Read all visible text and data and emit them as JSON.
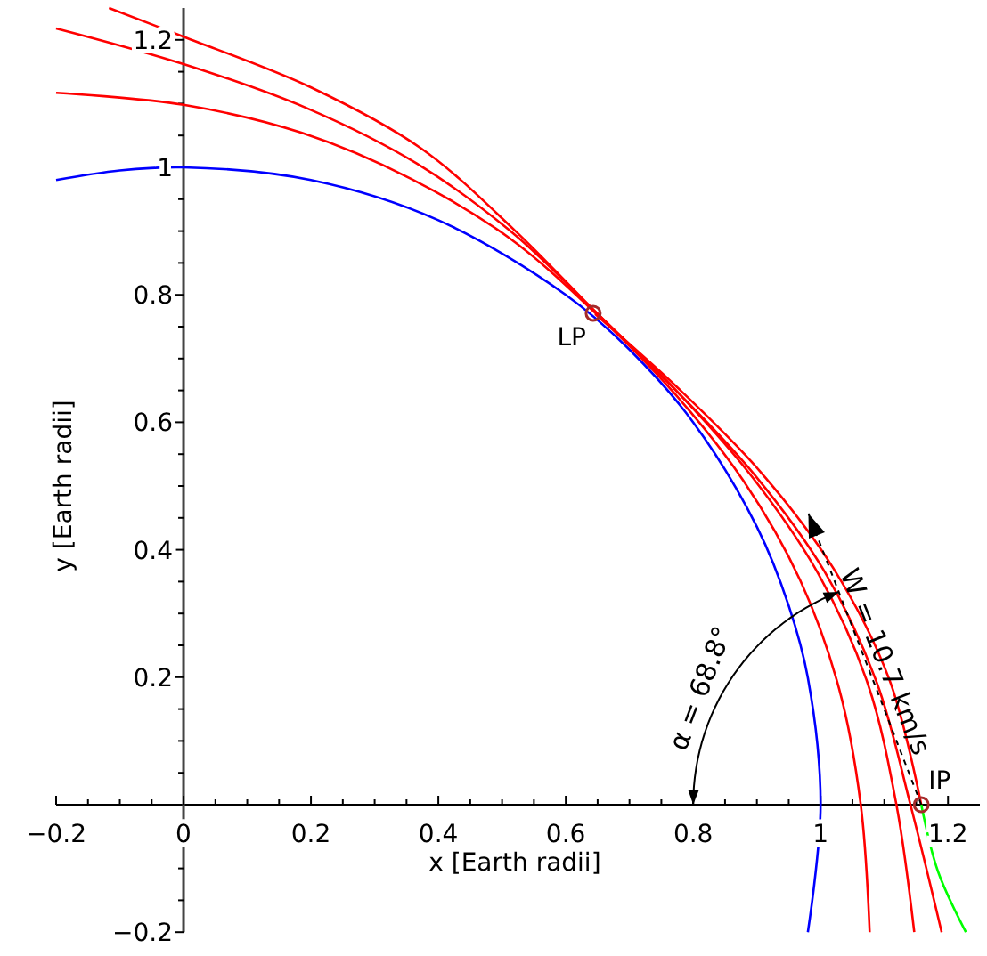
{
  "chart_data": {
    "type": "line",
    "xlabel": "x [Earth radii]",
    "ylabel": "y [Earth radii]",
    "xlim": [
      -0.2,
      1.25
    ],
    "ylim": [
      -0.2,
      1.25
    ],
    "xticks": [
      -0.2,
      {
        "value": -0.15,
        "label": null
      },
      {
        "value": -0.1,
        "label": null
      },
      {
        "value": -0.05,
        "label": null
      },
      0,
      {
        "value": 0.05,
        "label": null
      },
      {
        "value": 0.1,
        "label": null
      },
      {
        "value": 0.15,
        "label": null
      },
      0.2,
      {
        "value": 0.25,
        "label": null
      },
      {
        "value": 0.3,
        "label": null
      },
      {
        "value": 0.35,
        "label": null
      },
      0.4,
      {
        "value": 0.45,
        "label": null
      },
      {
        "value": 0.5,
        "label": null
      },
      {
        "value": 0.55,
        "label": null
      },
      0.6,
      {
        "value": 0.65,
        "label": null
      },
      {
        "value": 0.7,
        "label": null
      },
      {
        "value": 0.75,
        "label": null
      },
      0.8,
      {
        "value": 0.85,
        "label": null
      },
      {
        "value": 0.9,
        "label": null
      },
      {
        "value": 0.95,
        "label": null
      },
      1,
      {
        "value": 1.05,
        "label": null
      },
      {
        "value": 1.1,
        "label": null
      },
      {
        "value": 1.15,
        "label": null
      },
      1.2
    ],
    "yticks": [
      -0.2,
      {
        "value": -0.15,
        "label": null
      },
      {
        "value": -0.1,
        "label": null
      },
      {
        "value": -0.05,
        "label": null
      },
      {
        "value": 0.05,
        "label": null
      },
      {
        "value": 0.1,
        "label": null
      },
      {
        "value": 0.15,
        "label": null
      },
      0.2,
      {
        "value": 0.25,
        "label": null
      },
      {
        "value": 0.3,
        "label": null
      },
      {
        "value": 0.35,
        "label": null
      },
      0.4,
      {
        "value": 0.45,
        "label": null
      },
      {
        "value": 0.5,
        "label": null
      },
      {
        "value": 0.55,
        "label": null
      },
      0.6,
      {
        "value": 0.65,
        "label": null
      },
      {
        "value": 0.7,
        "label": null
      },
      {
        "value": 0.75,
        "label": null
      },
      0.8,
      {
        "value": 0.85,
        "label": null
      },
      {
        "value": 0.9,
        "label": null
      },
      {
        "value": 0.95,
        "label": null
      },
      1,
      {
        "value": 1.05,
        "label": null
      },
      {
        "value": 1.1,
        "label": null
      },
      {
        "value": 1.15,
        "label": null
      },
      1.2
    ],
    "series": [
      {
        "color": "#0000ff",
        "x": [
          -0.2,
          -0.1,
          0,
          0.2,
          0.4,
          0.6,
          0.7,
          0.8,
          0.9,
          0.95,
          0.98,
          1,
          0.98
        ],
        "values": [
          0.98,
          0.995,
          1,
          0.98,
          0.917,
          0.8,
          0.714,
          0.6,
          0.436,
          0.312,
          0.199,
          0,
          -0.2
        ]
      },
      {
        "color": "#ff0000",
        "x": [
          -0.117,
          0,
          0.201,
          0.374,
          0.52,
          0.648,
          0.774,
          0.896,
          1.006,
          1.088,
          1.141,
          1.19
        ],
        "values": [
          1.25,
          1.205,
          1.125,
          1.029,
          0.901,
          0.772,
          0.649,
          0.518,
          0.366,
          0.192,
          0,
          -0.2
        ]
      },
      {
        "color": "#ff0000",
        "x": [
          -0.2,
          0,
          0.193,
          0.366,
          0.518,
          0.648,
          0.774,
          0.892,
          0.996,
          1.074,
          1.119,
          1.147
        ],
        "values": [
          1.218,
          1.162,
          1.093,
          1.006,
          0.896,
          0.772,
          0.649,
          0.515,
          0.363,
          0.19,
          0,
          -0.2
        ]
      },
      {
        "color": "#ff0000",
        "x": [
          -0.2,
          0,
          0.186,
          0.357,
          0.513,
          0.647,
          0.77,
          0.879,
          0.968,
          1.029,
          1.063,
          1.077
        ],
        "values": [
          1.117,
          1.098,
          1.054,
          0.982,
          0.888,
          0.771,
          0.646,
          0.508,
          0.352,
          0.182,
          0,
          -0.2
        ]
      },
      {
        "color": "#ff0000",
        "x": [
          0.646,
          0.777,
          0.905,
          1.02,
          1.108,
          1.158
        ],
        "values": [
          0.77,
          0.653,
          0.523,
          0.371,
          0.196,
          0
        ]
      },
      {
        "color": "#00ff00",
        "x": [
          1.158,
          1.184,
          1.228
        ],
        "values": [
          0,
          -0.104,
          -0.2
        ]
      },
      {
        "type": "scatter",
        "color": "#a52a2a",
        "marker": "circle",
        "x": [
          0.643,
          1.158
        ],
        "values": [
          0.771,
          0
        ]
      }
    ],
    "annotations": [
      {
        "text": "LP",
        "x": 0.643,
        "y": 0.771
      },
      {
        "text": "IP",
        "x": 1.158,
        "y": 0
      },
      "α = 68.8°",
      "W = 10.7 km/s"
    ]
  }
}
